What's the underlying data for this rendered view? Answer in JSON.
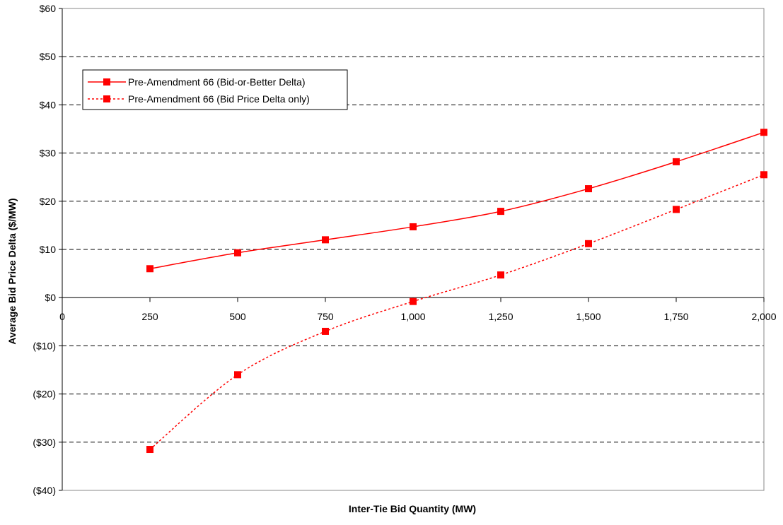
{
  "chart_data": {
    "type": "line",
    "title": "",
    "xlabel": "Inter-Tie Bid Quantity (MW)",
    "ylabel": "Average Bid Price Delta ($/MW)",
    "xlim": [
      0,
      2000
    ],
    "ylim": [
      -40,
      60
    ],
    "x_ticks": [
      0,
      250,
      500,
      750,
      1000,
      1250,
      1500,
      1750,
      2000
    ],
    "x_tick_labels": [
      "0",
      "250",
      "500",
      "750",
      "1,000",
      "1,250",
      "1,500",
      "1,750",
      "2,000"
    ],
    "y_ticks": [
      60,
      50,
      40,
      30,
      20,
      10,
      0,
      -10,
      -20,
      -30,
      -40
    ],
    "y_tick_labels": [
      "$60",
      "$50",
      "$40",
      "$30",
      "$20",
      "$10",
      "$0",
      "($10)",
      "($20)",
      "($30)",
      "($40)"
    ],
    "grid": "horizontal dashed",
    "legend_position": "top-left",
    "x": [
      250,
      500,
      750,
      1000,
      1250,
      1500,
      1750,
      2000
    ],
    "series": [
      {
        "name": "Pre-Amendment 66 (Bid-or-Better Delta)",
        "style": "solid",
        "color": "#ff0000",
        "values": [
          6.0,
          9.3,
          12.0,
          14.7,
          17.9,
          22.6,
          28.2,
          34.3
        ]
      },
      {
        "name": "Pre-Amendment 66 (Bid Price Delta only)",
        "style": "dotted",
        "color": "#ff0000",
        "values": [
          -31.5,
          -16.0,
          -7.0,
          -0.8,
          4.7,
          11.2,
          18.3,
          25.5
        ]
      }
    ]
  }
}
